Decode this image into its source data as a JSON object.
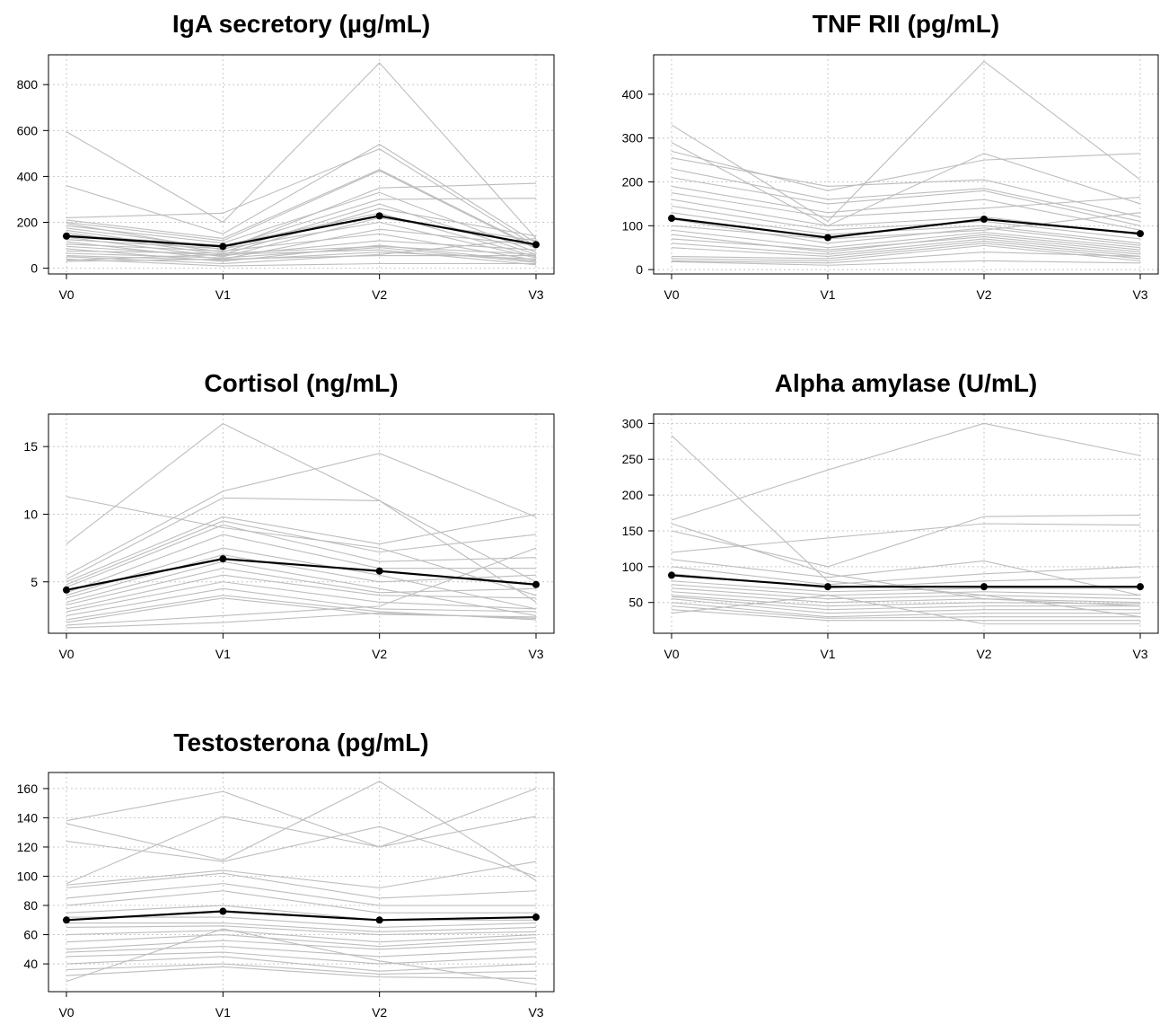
{
  "chart_data": [
    {
      "type": "line",
      "title": "IgA secretory (µg/mL)",
      "categories": [
        "V0",
        "V1",
        "V2",
        "V3"
      ],
      "yticks": [
        0,
        200,
        400,
        600,
        800
      ],
      "ylim": [
        -25,
        930
      ],
      "grid": true,
      "mean_color": "#000000",
      "individual_color": "#bdbdbd",
      "mean": [
        140,
        95,
        228,
        103
      ],
      "series": [
        {
          "values": [
            595,
            200,
            895,
            130
          ]
        },
        {
          "values": [
            360,
            150,
            540,
            110
          ]
        },
        {
          "values": [
            220,
            240,
            520,
            95
          ]
        },
        {
          "values": [
            210,
            130,
            430,
            90
          ]
        },
        {
          "values": [
            200,
            120,
            425,
            85
          ]
        },
        {
          "values": [
            195,
            80,
            350,
            370
          ]
        },
        {
          "values": [
            185,
            110,
            330,
            70
          ]
        },
        {
          "values": [
            175,
            90,
            300,
            305
          ]
        },
        {
          "values": [
            165,
            70,
            280,
            60
          ]
        },
        {
          "values": [
            155,
            60,
            260,
            140
          ]
        },
        {
          "values": [
            145,
            100,
            240,
            50
          ]
        },
        {
          "values": [
            135,
            50,
            220,
            120
          ]
        },
        {
          "values": [
            125,
            85,
            200,
            45
          ]
        },
        {
          "values": [
            115,
            40,
            170,
            100
          ]
        },
        {
          "values": [
            105,
            75,
            150,
            35
          ]
        },
        {
          "values": [
            95,
            55,
            120,
            80
          ]
        },
        {
          "values": [
            85,
            30,
            100,
            30
          ]
        },
        {
          "values": [
            75,
            65,
            95,
            60
          ]
        },
        {
          "values": [
            65,
            45,
            90,
            25
          ]
        },
        {
          "values": [
            55,
            35,
            70,
            40
          ]
        },
        {
          "values": [
            50,
            20,
            60,
            130
          ]
        },
        {
          "values": [
            40,
            10,
            20,
            20
          ]
        },
        {
          "values": [
            35,
            60,
            80,
            15
          ]
        },
        {
          "values": [
            30,
            40,
            55,
            55
          ]
        }
      ]
    },
    {
      "type": "line",
      "title": "TNF RII (pg/mL)",
      "categories": [
        "V0",
        "V1",
        "V2",
        "V3"
      ],
      "yticks": [
        0,
        100,
        200,
        300,
        400
      ],
      "ylim": [
        -10,
        490
      ],
      "grid": true,
      "mean_color": "#000000",
      "individual_color": "#bdbdbd",
      "mean": [
        117,
        73,
        115,
        82
      ],
      "series": [
        {
          "values": [
            330,
            110,
            475,
            205
          ]
        },
        {
          "values": [
            290,
            100,
            265,
            150
          ]
        },
        {
          "values": [
            270,
            180,
            250,
            265
          ]
        },
        {
          "values": [
            255,
            190,
            205,
            120
          ]
        },
        {
          "values": [
            230,
            160,
            185,
            110
          ]
        },
        {
          "values": [
            210,
            150,
            180,
            100
          ]
        },
        {
          "values": [
            190,
            130,
            160,
            90
          ]
        },
        {
          "values": [
            175,
            120,
            140,
            165
          ]
        },
        {
          "values": [
            160,
            100,
            120,
            80
          ]
        },
        {
          "values": [
            145,
            90,
            110,
            70
          ]
        },
        {
          "values": [
            130,
            80,
            100,
            60
          ]
        },
        {
          "values": [
            115,
            60,
            95,
            55
          ]
        },
        {
          "values": [
            100,
            70,
            90,
            130
          ]
        },
        {
          "values": [
            90,
            50,
            85,
            50
          ]
        },
        {
          "values": [
            80,
            40,
            80,
            45
          ]
        },
        {
          "values": [
            70,
            45,
            75,
            40
          ]
        },
        {
          "values": [
            60,
            35,
            70,
            35
          ]
        },
        {
          "values": [
            50,
            30,
            65,
            30
          ]
        },
        {
          "values": [
            30,
            25,
            60,
            25
          ]
        },
        {
          "values": [
            25,
            20,
            55,
            20
          ]
        },
        {
          "values": [
            20,
            15,
            40,
            30
          ]
        },
        {
          "values": [
            18,
            10,
            20,
            15
          ]
        }
      ]
    },
    {
      "type": "line",
      "title": "Cortisol (ng/mL)",
      "categories": [
        "V0",
        "V1",
        "V2",
        "V3"
      ],
      "yticks": [
        5,
        10,
        15
      ],
      "ylim": [
        1.2,
        17.4
      ],
      "grid": true,
      "mean_color": "#000000",
      "individual_color": "#bdbdbd",
      "mean": [
        4.4,
        6.7,
        5.8,
        4.8
      ],
      "series": [
        {
          "values": [
            11.3,
            9.0,
            7.5,
            4.0
          ]
        },
        {
          "values": [
            7.8,
            16.7,
            11.0,
            5.0
          ]
        },
        {
          "values": [
            5.5,
            11.7,
            14.5,
            9.8
          ]
        },
        {
          "values": [
            5.2,
            11.2,
            11.0,
            3.5
          ]
        },
        {
          "values": [
            5.0,
            9.8,
            7.8,
            10.0
          ]
        },
        {
          "values": [
            4.8,
            9.5,
            7.2,
            8.5
          ]
        },
        {
          "values": [
            4.6,
            9.2,
            6.5,
            6.8
          ]
        },
        {
          "values": [
            4.2,
            8.5,
            6.0,
            6.0
          ]
        },
        {
          "values": [
            4.0,
            7.5,
            5.5,
            3.0
          ]
        },
        {
          "values": [
            3.8,
            7.0,
            5.0,
            5.5
          ]
        },
        {
          "values": [
            3.5,
            6.5,
            4.5,
            2.5
          ]
        },
        {
          "values": [
            3.3,
            6.0,
            4.2,
            4.5
          ]
        },
        {
          "values": [
            3.0,
            5.5,
            4.0,
            3.8
          ]
        },
        {
          "values": [
            2.8,
            5.0,
            3.5,
            3.0
          ]
        },
        {
          "values": [
            2.5,
            4.5,
            3.0,
            2.8
          ]
        },
        {
          "values": [
            2.2,
            4.0,
            2.8,
            2.2
          ]
        },
        {
          "values": [
            2.0,
            3.8,
            2.6,
            2.4
          ]
        },
        {
          "values": [
            1.8,
            2.5,
            3.2,
            7.5
          ]
        },
        {
          "values": [
            1.6,
            2.0,
            2.7,
            2.3
          ]
        }
      ]
    },
    {
      "type": "line",
      "title": "Alpha amylase (U/mL)",
      "categories": [
        "V0",
        "V1",
        "V2",
        "V3"
      ],
      "yticks": [
        50,
        100,
        150,
        200,
        250,
        300
      ],
      "ylim": [
        7,
        313
      ],
      "grid": true,
      "mean_color": "#000000",
      "individual_color": "#bdbdbd",
      "mean": [
        88,
        72,
        72,
        72
      ],
      "series": [
        {
          "values": [
            283,
            80,
            60,
            30
          ]
        },
        {
          "values": [
            165,
            235,
            300,
            255
          ]
        },
        {
          "values": [
            160,
            90,
            55,
            45
          ]
        },
        {
          "values": [
            150,
            100,
            170,
            172
          ]
        },
        {
          "values": [
            120,
            140,
            160,
            158
          ]
        },
        {
          "values": [
            110,
            85,
            108,
            60
          ]
        },
        {
          "values": [
            100,
            75,
            90,
            100
          ]
        },
        {
          "values": [
            90,
            70,
            80,
            85
          ]
        },
        {
          "values": [
            80,
            65,
            70,
            70
          ]
        },
        {
          "values": [
            75,
            60,
            65,
            60
          ]
        },
        {
          "values": [
            70,
            55,
            60,
            55
          ]
        },
        {
          "values": [
            65,
            50,
            55,
            50
          ]
        },
        {
          "values": [
            60,
            45,
            50,
            48
          ]
        },
        {
          "values": [
            58,
            40,
            45,
            45
          ]
        },
        {
          "values": [
            55,
            35,
            40,
            40
          ]
        },
        {
          "values": [
            50,
            30,
            35,
            35
          ]
        },
        {
          "values": [
            45,
            28,
            30,
            30
          ]
        },
        {
          "values": [
            40,
            25,
            25,
            25
          ]
        },
        {
          "values": [
            35,
            60,
            20,
            20
          ]
        }
      ]
    },
    {
      "type": "line",
      "title": "Testosterona (pg/mL)",
      "categories": [
        "V0",
        "V1",
        "V2",
        "V3"
      ],
      "yticks": [
        40,
        60,
        80,
        100,
        120,
        140,
        160
      ],
      "ylim": [
        21,
        171
      ],
      "grid": true,
      "mean_color": "#000000",
      "individual_color": "#bdbdbd",
      "mean": [
        70,
        76,
        70,
        72
      ],
      "series": [
        {
          "values": [
            138,
            158,
            120,
            160
          ]
        },
        {
          "values": [
            136,
            111,
            165,
            97
          ]
        },
        {
          "values": [
            124,
            110,
            134,
            100
          ]
        },
        {
          "values": [
            95,
            141,
            120,
            141
          ]
        },
        {
          "values": [
            94,
            104,
            92,
            110
          ]
        },
        {
          "values": [
            92,
            102,
            85,
            90
          ]
        },
        {
          "values": [
            85,
            95,
            80,
            80
          ]
        },
        {
          "values": [
            80,
            90,
            75,
            75
          ]
        },
        {
          "values": [
            75,
            80,
            70,
            70
          ]
        },
        {
          "values": [
            72,
            72,
            65,
            68
          ]
        },
        {
          "values": [
            68,
            68,
            62,
            65
          ]
        },
        {
          "values": [
            65,
            66,
            60,
            62
          ]
        },
        {
          "values": [
            60,
            63,
            55,
            60
          ]
        },
        {
          "values": [
            55,
            60,
            52,
            58
          ]
        },
        {
          "values": [
            50,
            56,
            50,
            55
          ]
        },
        {
          "values": [
            48,
            52,
            45,
            50
          ]
        },
        {
          "values": [
            45,
            48,
            40,
            45
          ]
        },
        {
          "values": [
            40,
            45,
            35,
            40
          ]
        },
        {
          "values": [
            36,
            40,
            33,
            35
          ]
        },
        {
          "values": [
            32,
            38,
            31,
            30
          ]
        },
        {
          "values": [
            28,
            64,
            42,
            26
          ]
        }
      ]
    }
  ]
}
